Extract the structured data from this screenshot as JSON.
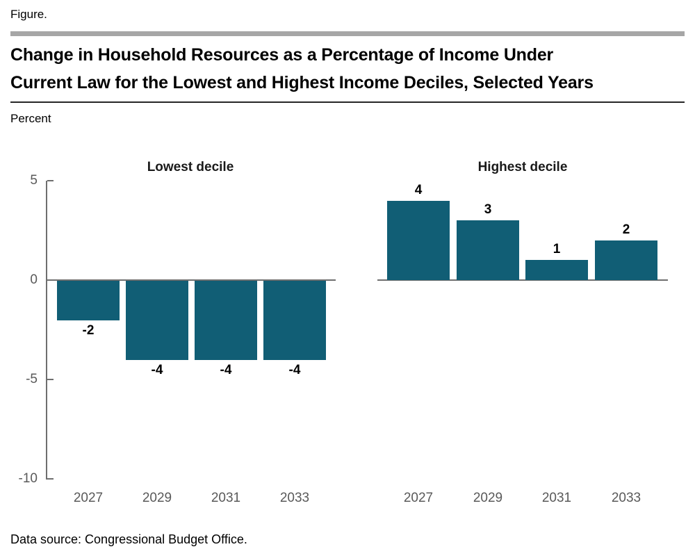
{
  "figure_label": "Figure.",
  "title_lines": [
    "Change in Household Resources as a Percentage of Income Under",
    "Current Law for the Lowest and Highest Income Deciles, Selected Years"
  ],
  "y_axis_unit_label": "Percent",
  "data_source": "Data source: Congressional Budget Office.",
  "colors": {
    "bar": "#115e75",
    "axis": "#6e6e6e",
    "header_rule": "#a6a6a6",
    "title_rule": "#262626",
    "tick_text": "#595959"
  },
  "chart_data": {
    "type": "bar",
    "categories": [
      "2027",
      "2029",
      "2031",
      "2033"
    ],
    "ylabel": "Percent",
    "ylim": [
      -10,
      5
    ],
    "yticks": [
      5,
      0,
      -5,
      -10
    ],
    "grid": false,
    "legend": "none",
    "panels": [
      {
        "title": "Lowest decile",
        "values": [
          -2,
          -4,
          -4,
          -4
        ],
        "labels": [
          "-2",
          "-4",
          "-4",
          "-4"
        ]
      },
      {
        "title": "Highest decile",
        "values": [
          4,
          3,
          1,
          2
        ],
        "labels": [
          "4",
          "3",
          "1",
          "2"
        ]
      }
    ]
  }
}
